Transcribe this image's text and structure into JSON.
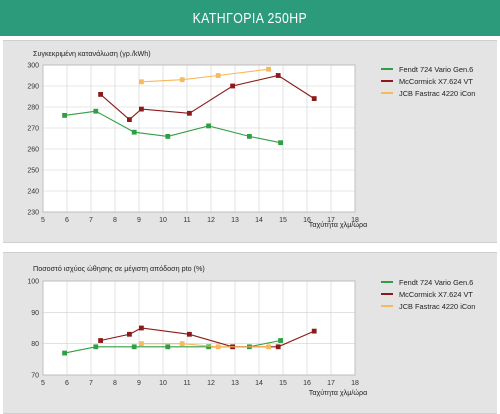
{
  "header": {
    "title": "ΚΑΤΗΓΟΡΙΑ 250HP"
  },
  "colors": {
    "header_bg": "#2b9b7c",
    "fendt": "#2ea043",
    "mccormick": "#8b1a1a",
    "jcb": "#f8b85c"
  },
  "chart_data": [
    {
      "type": "line",
      "title": "Συγκεκριμένη κατανάλωση (γρ./kWh)",
      "xlabel": "Ταχύτητα χλμ/ώρα",
      "ylabel": "",
      "xlim": [
        5,
        18
      ],
      "ylim": [
        230,
        300
      ],
      "xticks": [
        "5",
        "6",
        "7",
        "8",
        "9",
        "10",
        "11",
        "12",
        "13",
        "14",
        "15",
        "16",
        "17",
        "18"
      ],
      "yticks": [
        "230",
        "240",
        "250",
        "260",
        "270",
        "280",
        "290",
        "300"
      ],
      "legend_position": "right",
      "series": [
        {
          "name": "Fendt 724 Vario Gen.6",
          "color_key": "fendt",
          "x": [
            5.9,
            7.2,
            8.8,
            10.2,
            11.9,
            13.6,
            14.9
          ],
          "y": [
            276,
            278,
            268,
            266,
            271,
            266,
            263
          ]
        },
        {
          "name": "McCormick X7.624 VT",
          "color_key": "mccormick",
          "x": [
            7.4,
            8.6,
            9.1,
            11.1,
            12.9,
            14.8,
            16.3
          ],
          "y": [
            286,
            274,
            279,
            277,
            290,
            295,
            284
          ]
        },
        {
          "name": "JCB Fastrac 4220 iCon",
          "color_key": "jcb",
          "x": [
            9.1,
            10.8,
            12.3,
            14.4
          ],
          "y": [
            292,
            293,
            295,
            298
          ]
        }
      ]
    },
    {
      "type": "line",
      "title": "Ποσοστό ισχύος ώθησης σε μέγιστη απόδοση pto (%)",
      "xlabel": "Ταχύτητα χλμ/ώρα",
      "ylabel": "",
      "xlim": [
        5,
        18
      ],
      "ylim": [
        70,
        100
      ],
      "xticks": [
        "5",
        "6",
        "7",
        "8",
        "9",
        "10",
        "11",
        "12",
        "13",
        "14",
        "15",
        "16",
        "17",
        "18"
      ],
      "yticks": [
        "70",
        "80",
        "90",
        "100"
      ],
      "legend_position": "right",
      "series": [
        {
          "name": "Fendt 724 Vario Gen.6",
          "color_key": "fendt",
          "x": [
            5.9,
            7.2,
            8.8,
            10.2,
            11.9,
            13.6,
            14.9
          ],
          "y": [
            77,
            79,
            79,
            79,
            79,
            79,
            81
          ]
        },
        {
          "name": "McCormick X7.624 VT",
          "color_key": "mccormick",
          "x": [
            7.4,
            8.6,
            9.1,
            11.1,
            12.9,
            14.8,
            16.3
          ],
          "y": [
            81,
            83,
            85,
            83,
            79,
            79,
            84
          ]
        },
        {
          "name": "JCB Fastrac 4220 iCon",
          "color_key": "jcb",
          "x": [
            9.1,
            10.8,
            12.3,
            14.4
          ],
          "y": [
            80,
            80,
            79,
            79
          ]
        }
      ]
    }
  ]
}
